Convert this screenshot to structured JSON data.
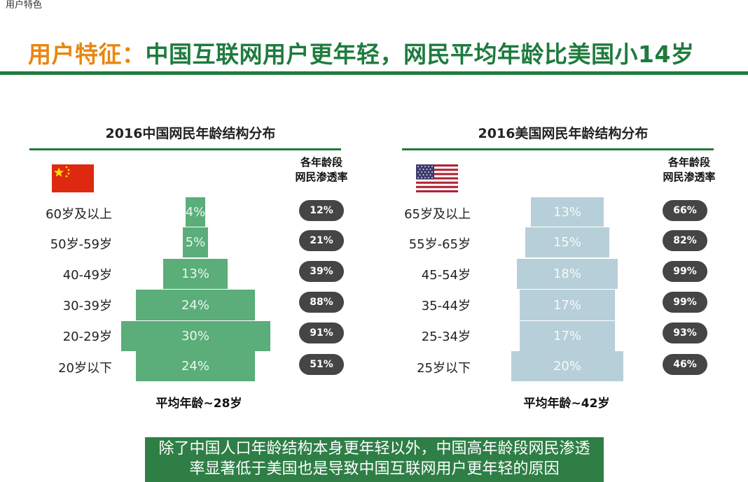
{
  "page": {
    "breadcrumb": "用户特色",
    "headline_prefix": "用户特征：",
    "headline_main": "中国互联网用户更年轻，网民平均年龄比美国小14岁",
    "conclusion_line1": "除了中国人口年龄结构本身更年轻以外，中国高年龄段网民渗透",
    "conclusion_line2": "率显著低于美国也是导致中国互联网用户更年轻的原因"
  },
  "colors": {
    "brand_green": "#1E7B3E",
    "title_orange": "#E8870E",
    "china_bar": "#5BAD79",
    "us_bar": "#B7CFD8",
    "pill": "#454545",
    "conclusion_bg": "#2E7E46"
  },
  "chart_data": [
    {
      "type": "bar",
      "orientation": "population-pyramid",
      "title": "2016中国网民年龄结构分布",
      "flag_icon": "china-flag-icon",
      "categories": [
        "60岁及以上",
        "50岁-59岁",
        "40-49岁",
        "30-39岁",
        "20-29岁",
        "20岁以下"
      ],
      "values": [
        4,
        5,
        13,
        24,
        30,
        24
      ],
      "value_labels": [
        "4%",
        "5%",
        "13%",
        "24%",
        "30%",
        "24%"
      ],
      "penetration_header": [
        "各年龄段",
        "网民渗透率"
      ],
      "penetration": [
        12,
        21,
        39,
        88,
        91,
        51
      ],
      "penetration_labels": [
        "12%",
        "21%",
        "39%",
        "88%",
        "91%",
        "51%"
      ],
      "average_age": "平均年龄~28岁"
    },
    {
      "type": "bar",
      "orientation": "population-pyramid",
      "title": "2016美国网民年龄结构分布",
      "flag_icon": "usa-flag-icon",
      "categories": [
        "65岁及以上",
        "55岁-65岁",
        "45-54岁",
        "35-44岁",
        "25-34岁",
        "25岁以下"
      ],
      "values": [
        13,
        15,
        18,
        17,
        17,
        20
      ],
      "value_labels": [
        "13%",
        "15%",
        "18%",
        "17%",
        "17%",
        "20%"
      ],
      "penetration_header": [
        "各年龄段",
        "网民渗透率"
      ],
      "penetration": [
        66,
        82,
        99,
        99,
        93,
        46
      ],
      "penetration_labels": [
        "66%",
        "82%",
        "99%",
        "99%",
        "93%",
        "46%"
      ],
      "average_age": "平均年龄~42岁"
    }
  ]
}
